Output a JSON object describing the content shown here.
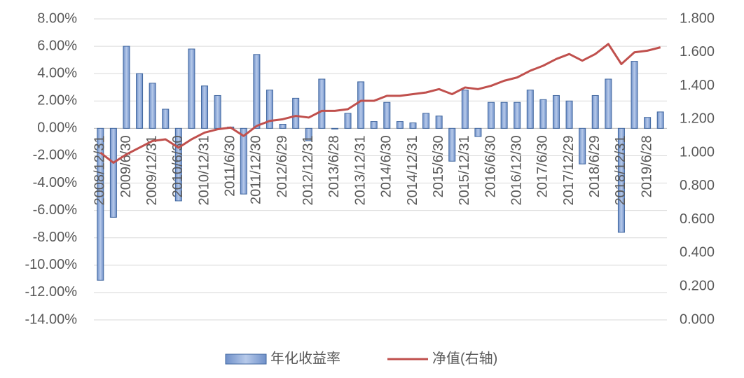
{
  "chart_data": {
    "type": "bar",
    "categories": [
      "2008/12/31",
      null,
      "2009/6/30",
      null,
      "2009/12/31",
      null,
      "2010/6/30",
      null,
      "2010/12/31",
      null,
      "2011/6/30",
      null,
      "2011/12/30",
      null,
      "2012/6/29",
      null,
      "2012/12/31",
      null,
      "2013/6/28",
      null,
      "2013/12/31",
      null,
      "2014/6/30",
      null,
      "2014/12/31",
      null,
      "2015/6/30",
      null,
      "2015/12/31",
      null,
      "2016/6/30",
      null,
      "2016/12/30",
      null,
      "2017/6/30",
      null,
      "2017/12/29",
      null,
      "2018/6/29",
      null,
      "2018/12/31",
      null,
      "2019/6/28",
      null
    ],
    "series": [
      {
        "name": "年化收益率",
        "type": "bar",
        "color": "#8eaadb",
        "values": [
          -11.1,
          -6.5,
          6.0,
          4.0,
          3.3,
          1.4,
          -5.3,
          5.8,
          3.1,
          2.4,
          0.1,
          -4.8,
          5.4,
          2.8,
          0.3,
          2.2,
          -0.9,
          3.6,
          -0.05,
          1.1,
          3.4,
          0.5,
          1.9,
          0.5,
          0.4,
          1.1,
          0.9,
          -2.4,
          2.8,
          -0.6,
          1.9,
          1.9,
          1.9,
          2.8,
          2.1,
          2.4,
          2.0,
          -2.6,
          2.4,
          3.6,
          -7.6,
          4.9,
          0.8,
          1.2
        ]
      },
      {
        "name": "净值(右轴)",
        "type": "line",
        "axis": "y2",
        "color": "#c0504d",
        "values": [
          1.0,
          0.94,
          0.99,
          1.03,
          1.07,
          1.08,
          1.03,
          1.08,
          1.12,
          1.14,
          1.15,
          1.1,
          1.16,
          1.19,
          1.2,
          1.22,
          1.21,
          1.25,
          1.25,
          1.26,
          1.31,
          1.31,
          1.34,
          1.34,
          1.35,
          1.36,
          1.38,
          1.35,
          1.39,
          1.38,
          1.4,
          1.43,
          1.45,
          1.49,
          1.52,
          1.56,
          1.59,
          1.55,
          1.59,
          1.65,
          1.53,
          1.6,
          1.61,
          1.63
        ]
      }
    ],
    "ylim": [
      -14,
      8
    ],
    "yticks": [
      {
        "value": 8,
        "label": "8.00%"
      },
      {
        "value": 6,
        "label": "6.00%"
      },
      {
        "value": 4,
        "label": "4.00%"
      },
      {
        "value": 2,
        "label": "2.00%"
      },
      {
        "value": 0,
        "label": "0.00%"
      },
      {
        "value": -2,
        "label": "-2.00%"
      },
      {
        "value": -4,
        "label": "-4.00%"
      },
      {
        "value": -6,
        "label": "-6.00%"
      },
      {
        "value": -8,
        "label": "-8.00%"
      },
      {
        "value": -10,
        "label": "-10.00%"
      },
      {
        "value": -12,
        "label": "-12.00%"
      },
      {
        "value": -14,
        "label": "-14.00%"
      }
    ],
    "y2lim": [
      0,
      1.8
    ],
    "y2ticks": [
      {
        "value": 1.8,
        "label": "1.800"
      },
      {
        "value": 1.6,
        "label": "1.600"
      },
      {
        "value": 1.4,
        "label": "1.400"
      },
      {
        "value": 1.2,
        "label": "1.200"
      },
      {
        "value": 1.0,
        "label": "1.000"
      },
      {
        "value": 0.8,
        "label": "0.800"
      },
      {
        "value": 0.6,
        "label": "0.600"
      },
      {
        "value": 0.4,
        "label": "0.400"
      },
      {
        "value": 0.2,
        "label": "0.200"
      },
      {
        "value": 0,
        "label": "0.000"
      }
    ],
    "grid": true,
    "legend": "bottom"
  }
}
